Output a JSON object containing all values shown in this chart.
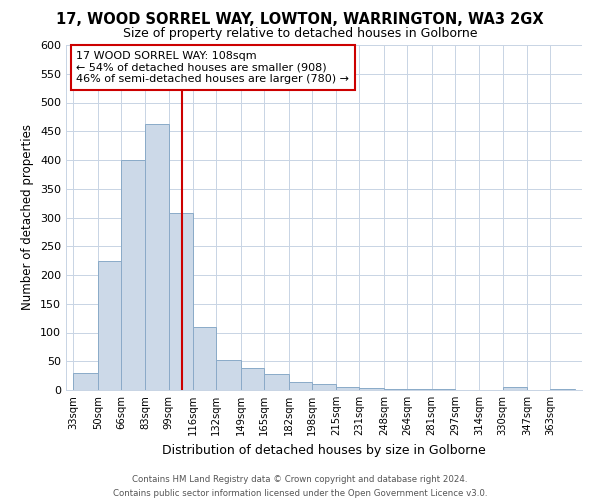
{
  "title": "17, WOOD SORREL WAY, LOWTON, WARRINGTON, WA3 2GX",
  "subtitle": "Size of property relative to detached houses in Golborne",
  "xlabel": "Distribution of detached houses by size in Golborne",
  "ylabel": "Number of detached properties",
  "annotation_line1": "17 WOOD SORREL WAY: 108sqm",
  "annotation_line2": "← 54% of detached houses are smaller (908)",
  "annotation_line3": "46% of semi-detached houses are larger (780) →",
  "bar_edges": [
    33,
    50,
    66,
    83,
    99,
    116,
    132,
    149,
    165,
    182,
    198,
    215,
    231,
    248,
    264,
    281,
    297,
    314,
    330,
    347,
    363,
    380
  ],
  "bar_heights": [
    30,
    225,
    400,
    462,
    308,
    110,
    53,
    38,
    27,
    14,
    10,
    5,
    3,
    2,
    2,
    1,
    0,
    0,
    5,
    0,
    1
  ],
  "bar_color": "#ccd9e8",
  "bar_edge_color": "#8aaac8",
  "vline_color": "#cc0000",
  "vline_x": 108,
  "annotation_box_edge_color": "#cc0000",
  "ylim": [
    0,
    600
  ],
  "yticks": [
    0,
    50,
    100,
    150,
    200,
    250,
    300,
    350,
    400,
    450,
    500,
    550,
    600
  ],
  "x_tick_labels": [
    "33sqm",
    "50sqm",
    "66sqm",
    "83sqm",
    "99sqm",
    "116sqm",
    "132sqm",
    "149sqm",
    "165sqm",
    "182sqm",
    "198sqm",
    "215sqm",
    "231sqm",
    "248sqm",
    "264sqm",
    "281sqm",
    "297sqm",
    "314sqm",
    "330sqm",
    "347sqm",
    "363sqm"
  ],
  "footer_line1": "Contains HM Land Registry data © Crown copyright and database right 2024.",
  "footer_line2": "Contains public sector information licensed under the Open Government Licence v3.0.",
  "background_color": "#ffffff",
  "grid_color": "#c8d4e4"
}
